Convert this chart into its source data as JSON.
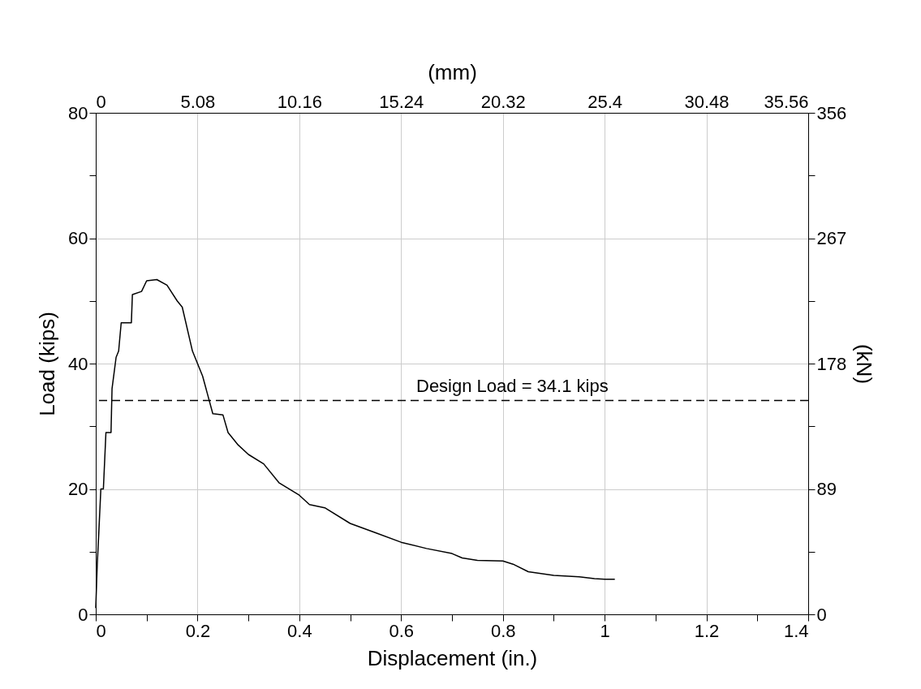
{
  "chart_data": {
    "type": "line",
    "xlabel": "Displacement (in.)",
    "ylabel": "Load (kips)",
    "x2label": "(mm)",
    "y2label": "(kN)",
    "x": [
      0,
      0.003,
      0.006,
      0.01,
      0.015,
      0.02,
      0.03,
      0.032,
      0.04,
      0.045,
      0.05,
      0.07,
      0.072,
      0.09,
      0.1,
      0.12,
      0.14,
      0.16,
      0.17,
      0.19,
      0.2,
      0.21,
      0.22,
      0.23,
      0.25,
      0.26,
      0.28,
      0.3,
      0.33,
      0.36,
      0.4,
      0.42,
      0.45,
      0.5,
      0.55,
      0.6,
      0.65,
      0.7,
      0.72,
      0.75,
      0.8,
      0.82,
      0.85,
      0.9,
      0.95,
      0.98,
      1.0,
      1.02
    ],
    "series": [
      {
        "color": "#000000",
        "values": [
          1,
          8,
          13,
          20,
          20,
          29,
          29,
          36,
          41,
          42,
          46.5,
          46.5,
          51,
          51.5,
          53.2,
          53.4,
          52.5,
          50,
          49,
          42,
          40,
          38,
          35,
          32,
          31.8,
          29,
          27,
          25.5,
          24,
          21,
          19,
          17.5,
          17,
          14.5,
          13,
          11.5,
          10.5,
          9.7,
          9,
          8.6,
          8.5,
          8,
          6.8,
          6.2,
          6,
          5.7,
          5.6,
          5.6
        ]
      }
    ],
    "xlim": [
      0,
      1.4
    ],
    "xticks": [
      0,
      {
        "value": 0.1,
        "label": null
      },
      0.2,
      {
        "value": 0.3,
        "label": null
      },
      0.4,
      {
        "value": 0.5,
        "label": null
      },
      0.6,
      {
        "value": 0.7,
        "label": null
      },
      0.8,
      {
        "value": 0.9,
        "label": null
      },
      1,
      {
        "value": 1.1,
        "label": null
      },
      1.2,
      {
        "value": 1.3,
        "label": null
      },
      1.4
    ],
    "ylim": [
      0,
      80
    ],
    "yticks": [
      0,
      {
        "value": 10,
        "label": null
      },
      20,
      {
        "value": 30,
        "label": null
      },
      40,
      {
        "value": 50,
        "label": null
      },
      60,
      {
        "value": 70,
        "label": null
      },
      80
    ],
    "x2lim": [
      0,
      35.56
    ],
    "x2ticks": [
      0,
      5.08,
      10.16,
      15.24,
      20.32,
      25.4,
      30.48,
      35.56
    ],
    "y2lim": [
      0,
      356
    ],
    "y2ticks": [
      0,
      {
        "value": 44.5,
        "label": null
      },
      89,
      {
        "value": 133.5,
        "label": null
      },
      178,
      {
        "value": 222.5,
        "label": null
      },
      267,
      {
        "value": 311.5,
        "label": null
      },
      356
    ],
    "ref_lines": [
      {
        "axis": "y",
        "value": 34.1,
        "label": "Design Load = 34.1 kips",
        "color": "#000000",
        "line_style": "dashed"
      }
    ],
    "grid": true,
    "marker": "none",
    "line_style": "solid"
  }
}
